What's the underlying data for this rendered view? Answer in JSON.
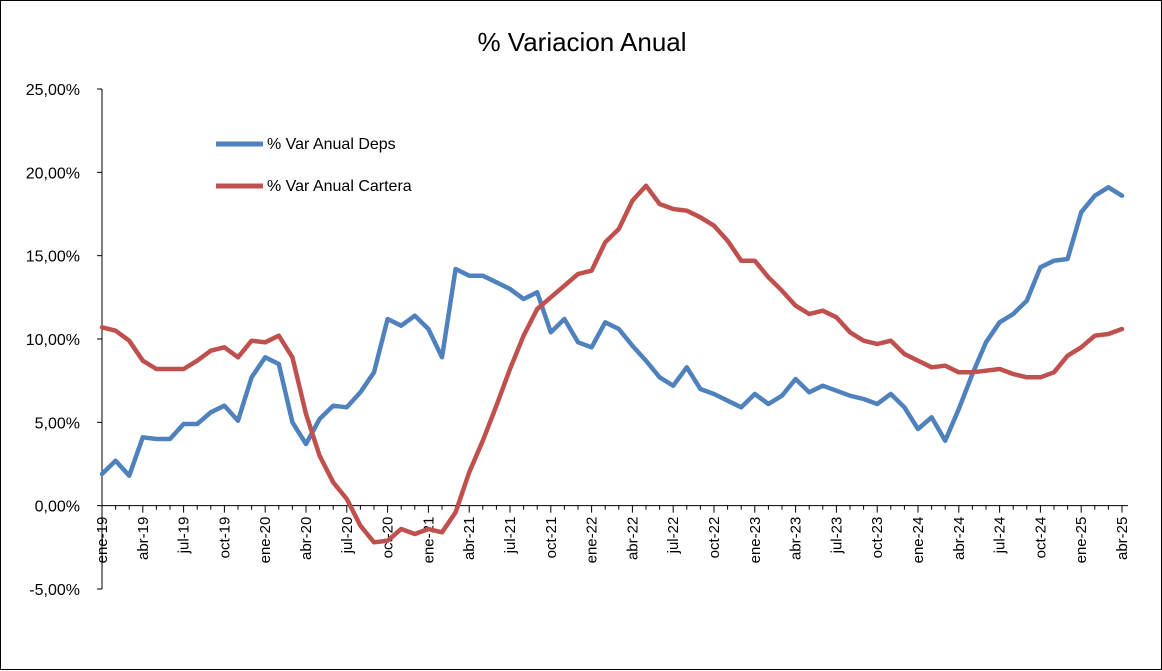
{
  "chart_data": {
    "type": "line",
    "title": "% Variacion Anual",
    "xlabel": "",
    "ylabel": "",
    "ylim": [
      -5,
      25
    ],
    "yticks": [
      "-5,00%",
      "0,00%",
      "5,00%",
      "10,00%",
      "15,00%",
      "20,00%",
      "25,00%"
    ],
    "ytick_values": [
      -5,
      0,
      5,
      10,
      15,
      20,
      25
    ],
    "tick_labels": [
      "ene-19",
      "abr-19",
      "jul-19",
      "oct-19",
      "ene-20",
      "abr-20",
      "jul-20",
      "oct-20",
      "ene-21",
      "abr-21",
      "jul-21",
      "oct-21",
      "ene-22",
      "abr-22",
      "jul-22",
      "oct-22",
      "ene-23",
      "abr-23",
      "jul-23",
      "oct-23",
      "ene-24",
      "abr-24",
      "jul-24",
      "oct-24",
      "ene-25",
      "abr-25"
    ],
    "grid": false,
    "legend_position": "top-left",
    "series": [
      {
        "name": "% Var Anual Deps",
        "color": "#4F81BD",
        "values": [
          1.9,
          2.7,
          1.8,
          4.1,
          4.0,
          4.0,
          4.9,
          4.9,
          5.6,
          6.0,
          5.1,
          7.7,
          8.9,
          8.5,
          5.0,
          3.7,
          5.2,
          6.0,
          5.9,
          6.8,
          8.0,
          11.2,
          10.8,
          11.4,
          10.6,
          8.9,
          14.2,
          13.8,
          13.8,
          13.4,
          13.0,
          12.4,
          12.8,
          10.4,
          11.2,
          9.8,
          9.5,
          11.0,
          10.6,
          9.6,
          8.7,
          7.7,
          7.2,
          8.3,
          7.0,
          6.7,
          6.3,
          5.9,
          6.7,
          6.1,
          6.6,
          7.6,
          6.8,
          7.2,
          6.9,
          6.6,
          6.4,
          6.1,
          6.7,
          5.9,
          4.6,
          5.3,
          3.9,
          5.8,
          7.9,
          9.8,
          11.0,
          11.5,
          12.3,
          14.3,
          14.7,
          14.8,
          17.6,
          18.6,
          19.1,
          18.6
        ]
      },
      {
        "name": "% Var Anual Cartera",
        "color": "#C0504D",
        "values": [
          10.7,
          10.5,
          9.9,
          8.7,
          8.2,
          8.2,
          8.2,
          8.7,
          9.3,
          9.5,
          8.9,
          9.9,
          9.8,
          10.2,
          8.9,
          5.5,
          3.0,
          1.4,
          0.4,
          -1.2,
          -2.2,
          -2.1,
          -1.4,
          -1.7,
          -1.4,
          -1.6,
          -0.4,
          2.0,
          3.9,
          6.0,
          8.2,
          10.2,
          11.8,
          12.5,
          13.2,
          13.9,
          14.1,
          15.8,
          16.6,
          18.3,
          19.2,
          18.1,
          17.8,
          17.7,
          17.3,
          16.8,
          15.9,
          14.7,
          14.7,
          13.7,
          12.9,
          12.0,
          11.5,
          11.7,
          11.3,
          10.4,
          9.9,
          9.7,
          9.9,
          9.1,
          8.7,
          8.3,
          8.4,
          8.0,
          8.0,
          8.1,
          8.2,
          7.9,
          7.7,
          7.7,
          8.0,
          9.0,
          9.5,
          10.2,
          10.3,
          10.6
        ]
      }
    ]
  }
}
